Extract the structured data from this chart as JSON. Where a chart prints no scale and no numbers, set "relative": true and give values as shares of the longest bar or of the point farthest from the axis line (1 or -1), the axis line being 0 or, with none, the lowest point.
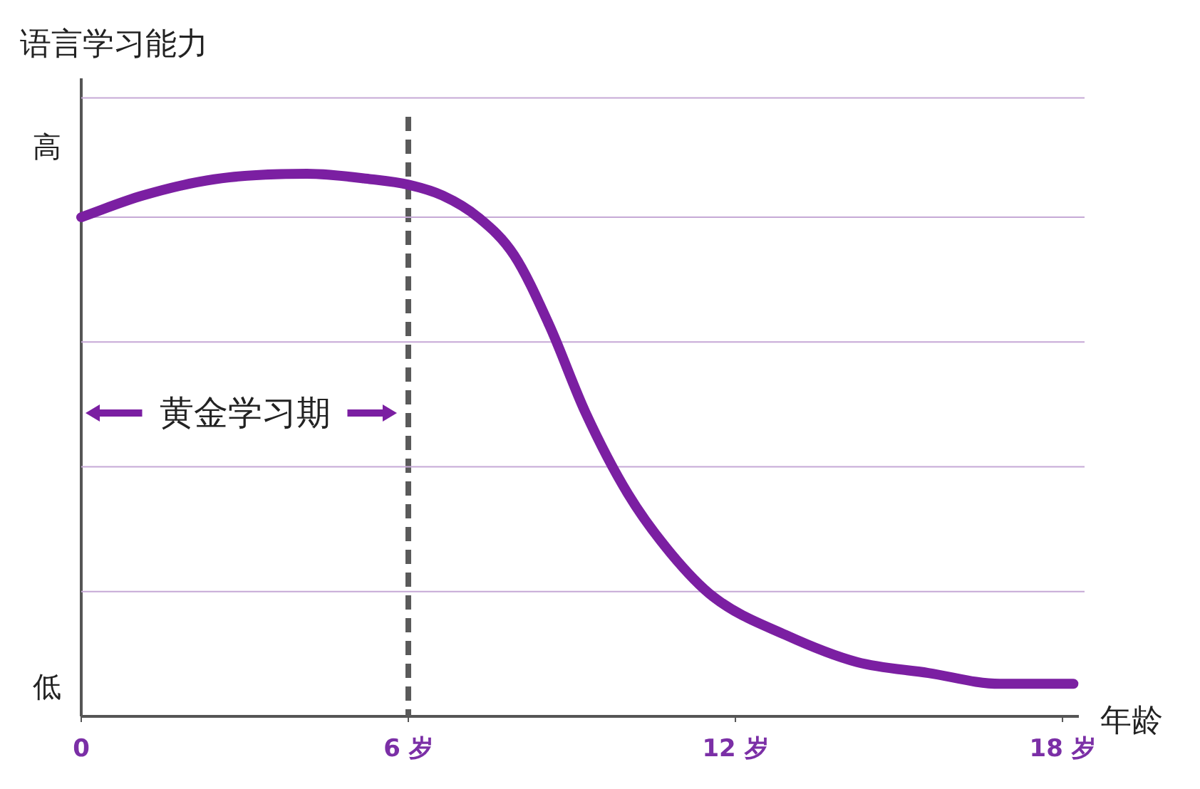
{
  "chart_data": {
    "type": "line",
    "relative": true,
    "ylabel": "语言学习能力",
    "xlabel": "年龄",
    "x": [
      0,
      1.13,
      2.44,
      4.14,
      5.32,
      6,
      6.63,
      7.28,
      7.94,
      8.59,
      9.25,
      10.03,
      10.82,
      11.6,
      12.92,
      14.23,
      15.54,
      16.85,
      18.2
    ],
    "series": [
      {
        "color": "#7b1fa2",
        "values": [
          0.92,
          0.96,
          0.99,
          1.0,
          0.99,
          0.98,
          0.96,
          0.92,
          0.85,
          0.72,
          0.56,
          0.41,
          0.3,
          0.22,
          0.15,
          0.1,
          0.08,
          0.06,
          0.06
        ]
      }
    ],
    "xlim": [
      0,
      18.3
    ],
    "xticks": [
      0,
      {
        "value": 6,
        "label": "6 岁"
      },
      {
        "value": 12,
        "label": "12 岁"
      },
      {
        "value": 18,
        "label": "18 岁"
      }
    ],
    "marker": "none",
    "line_style": "solid",
    "ref_lines": [
      {
        "axis": "x",
        "value": 6,
        "color": "#5a5a5a",
        "line_style": "dashed"
      },
      {
        "axis": "y",
        "value": 0.23,
        "color": "#c6a9d6",
        "line_style": "solid"
      },
      {
        "axis": "y",
        "value": 0.46,
        "color": "#c6a9d6",
        "line_style": "solid"
      },
      {
        "axis": "y",
        "value": 0.69,
        "color": "#c6a9d6",
        "line_style": "solid"
      },
      {
        "axis": "y",
        "value": 0.92,
        "color": "#c6a9d6",
        "line_style": "solid"
      },
      {
        "axis": "y",
        "value": 1.14,
        "color": "#c6a9d6",
        "line_style": "solid"
      }
    ],
    "annotations": [
      "高",
      "低",
      "黄金学习期"
    ]
  }
}
